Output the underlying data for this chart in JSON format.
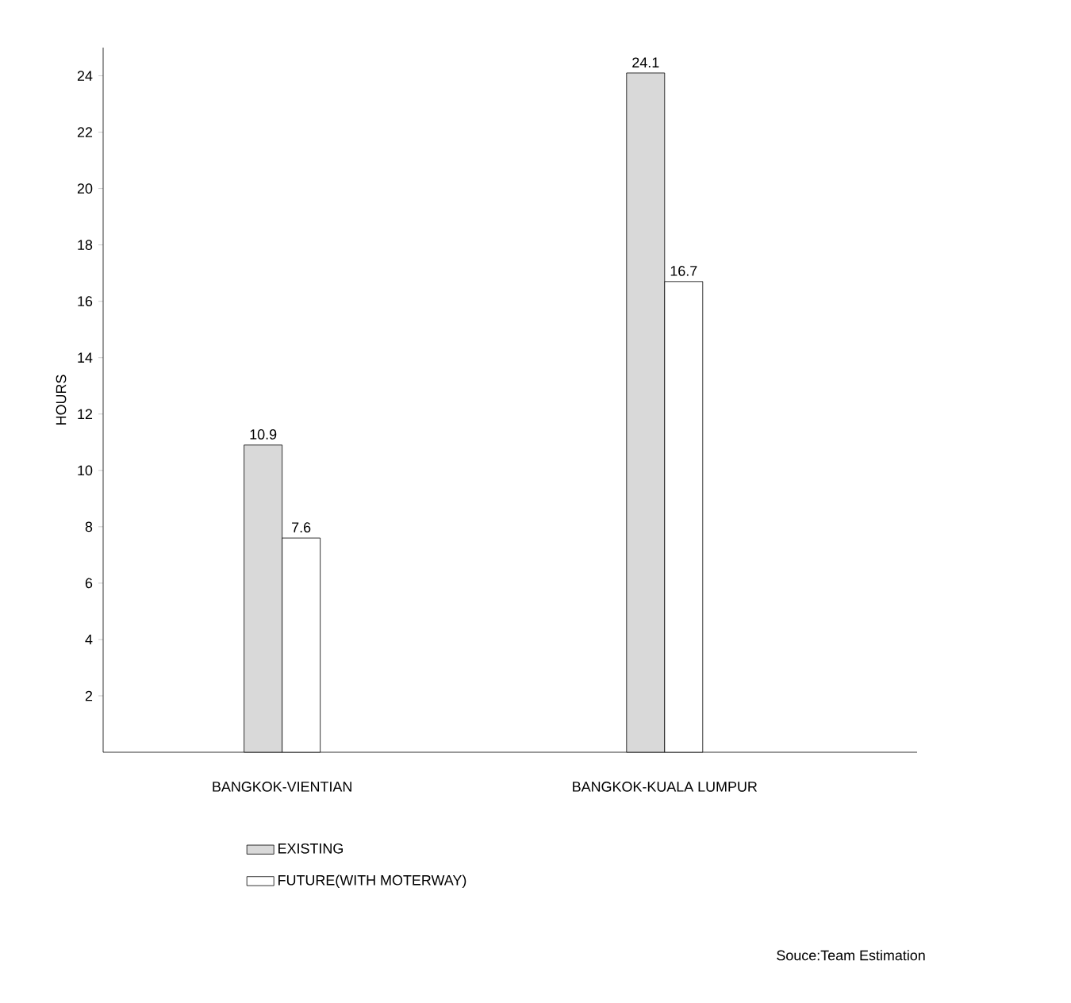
{
  "chart_data": {
    "type": "bar",
    "ylabel": "HOURS",
    "categories": [
      "BANGKOK-VIENTIAN",
      "BANGKOK-KUALA LUMPUR"
    ],
    "series": [
      {
        "name": "EXISTING",
        "color": "#d9d9d9",
        "values": [
          10.9,
          24.1
        ]
      },
      {
        "name": "FUTURE(WITH MOTERWAY)",
        "color": "#ffffff",
        "values": [
          7.6,
          16.7
        ]
      }
    ],
    "ylim": [
      0,
      25
    ],
    "yticks": [
      2,
      4,
      6,
      8,
      10,
      12,
      14,
      16,
      18,
      20,
      22,
      24
    ],
    "data_labels": true,
    "legend": "bottom",
    "annotations": [
      "Souce:Team Estimation"
    ]
  }
}
